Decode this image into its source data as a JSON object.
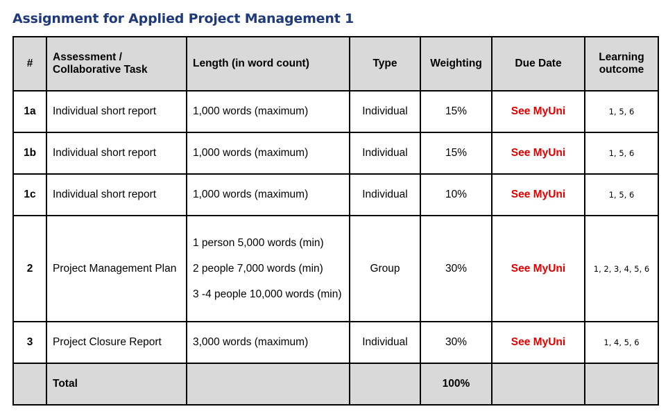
{
  "page": {
    "title": "Assignment for Applied Project Management 1"
  },
  "table": {
    "headers": {
      "num": "#",
      "task": "Assessment / Collaborative Task",
      "length": "Length (in word count)",
      "type": "Type",
      "weighting": "Weighting",
      "due": "Due Date",
      "outcome": "Learning outcome"
    },
    "rows": [
      {
        "num": "1a",
        "task": "Individual short report",
        "length": [
          "1,000 words (maximum)"
        ],
        "type": "Individual",
        "weighting": "15%",
        "due": "See MyUni",
        "outcome": "1, 5, 6"
      },
      {
        "num": "1b",
        "task": "Individual short report",
        "length": [
          "1,000 words (maximum)"
        ],
        "type": "Individual",
        "weighting": "15%",
        "due": "See MyUni",
        "outcome": "1, 5, 6"
      },
      {
        "num": "1c",
        "task": "Individual short report",
        "length": [
          "1,000 words (maximum)"
        ],
        "type": "Individual",
        "weighting": "10%",
        "due": "See MyUni",
        "outcome": "1, 5, 6"
      },
      {
        "num": "2",
        "task": "Project Management Plan",
        "length": [
          "1 person 5,000 words (min)",
          "2 people 7,000 words (min)",
          "3 -4 people 10,000 words (min)"
        ],
        "type": "Group",
        "weighting": "30%",
        "due": "See MyUni",
        "outcome": "1, 2, 3, 4, 5, 6"
      },
      {
        "num": "3",
        "task": "Project Closure Report",
        "length": [
          "3,000 words (maximum)"
        ],
        "type": "Individual",
        "weighting": "30%",
        "due": "See MyUni",
        "outcome": "1, 4, 5, 6"
      }
    ],
    "total": {
      "label": "Total",
      "weighting": "100%"
    }
  },
  "colors": {
    "title": "#1f3a7a",
    "header_fill": "#d9d9d9",
    "due_text": "#e00000",
    "border": "#000000"
  }
}
